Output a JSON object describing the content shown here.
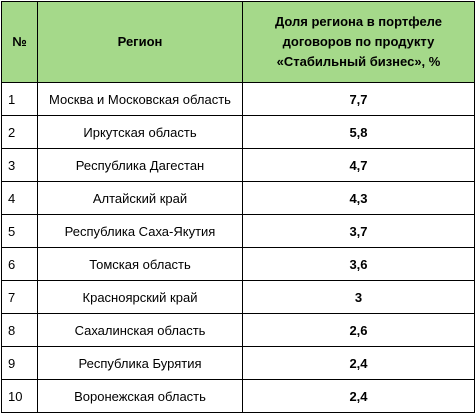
{
  "header": {
    "num": "№",
    "region": "Регион",
    "share": "Доля региона в портфеле договоров по продукту «Стабильный бизнес», %"
  },
  "rows": [
    {
      "num": "1",
      "region": "Москва и Московская область",
      "share": "7,7"
    },
    {
      "num": "2",
      "region": "Иркутская область",
      "share": "5,8"
    },
    {
      "num": "3",
      "region": "Республика Дагестан",
      "share": "4,7"
    },
    {
      "num": "4",
      "region": "Алтайский край",
      "share": "4,3"
    },
    {
      "num": "5",
      "region": "Республика Саха-Якутия",
      "share": "3,7"
    },
    {
      "num": "6",
      "region": "Томская область",
      "share": "3,6"
    },
    {
      "num": "7",
      "region": "Красноярский край",
      "share": "3"
    },
    {
      "num": "8",
      "region": "Сахалинская область",
      "share": "2,6"
    },
    {
      "num": "9",
      "region": "Республика Бурятия",
      "share": "2,4"
    },
    {
      "num": "10",
      "region": "Воронежская область",
      "share": "2,4"
    }
  ],
  "colors": {
    "header_background": "#a5d98a",
    "border": "#000000"
  }
}
